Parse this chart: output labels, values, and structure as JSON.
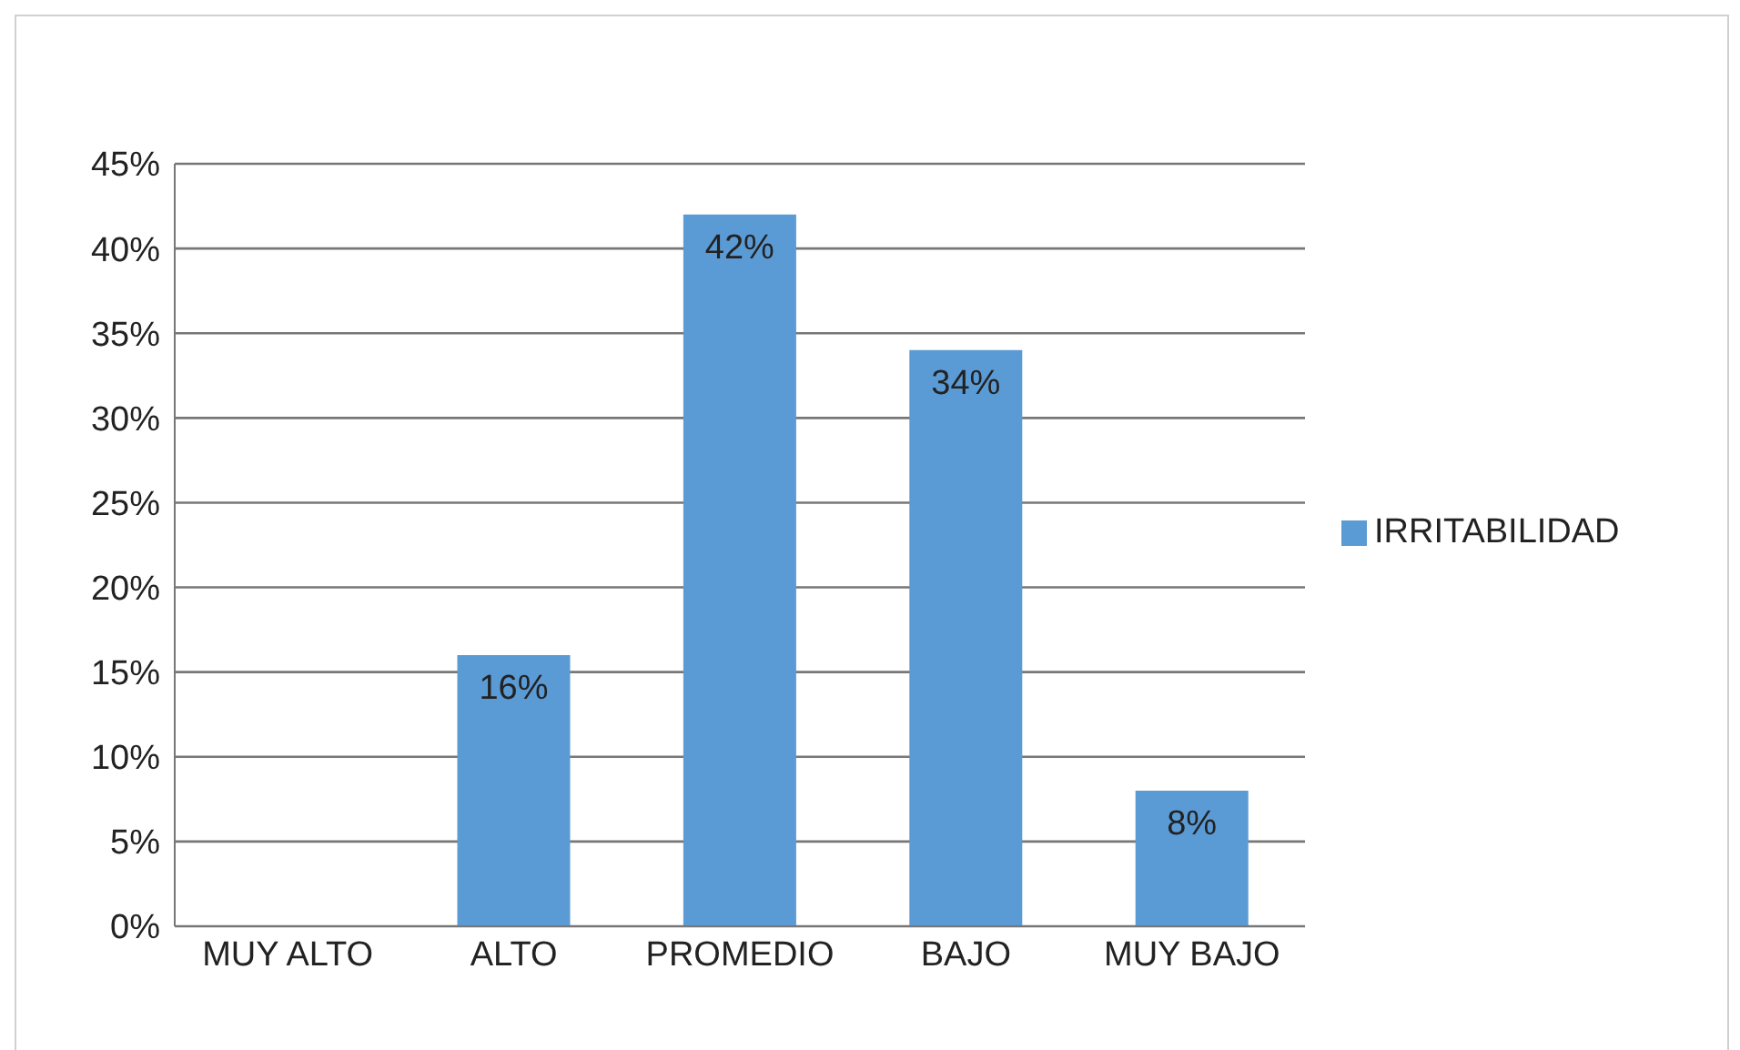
{
  "chart_data": {
    "type": "bar",
    "categories": [
      "MUY ALTO",
      "ALTO",
      "PROMEDIO",
      "BAJO",
      "MUY BAJO"
    ],
    "series": [
      {
        "name": "IRRITABILIDAD",
        "color": "#5b9bd5",
        "values": [
          0,
          16,
          42,
          34,
          8
        ],
        "value_labels": [
          null,
          "16%",
          "42%",
          "34%",
          "8%"
        ]
      }
    ],
    "ylim": [
      0,
      45
    ],
    "yticks": [
      {
        "value": 0,
        "label": "0%"
      },
      {
        "value": 5,
        "label": "5%"
      },
      {
        "value": 10,
        "label": "10%"
      },
      {
        "value": 15,
        "label": "15%"
      },
      {
        "value": 20,
        "label": "20%"
      },
      {
        "value": 25,
        "label": "25%"
      },
      {
        "value": 30,
        "label": "30%"
      },
      {
        "value": 35,
        "label": "35%"
      },
      {
        "value": 40,
        "label": "40%"
      },
      {
        "value": 45,
        "label": "45%"
      }
    ],
    "grid": "y",
    "legend": "right"
  }
}
